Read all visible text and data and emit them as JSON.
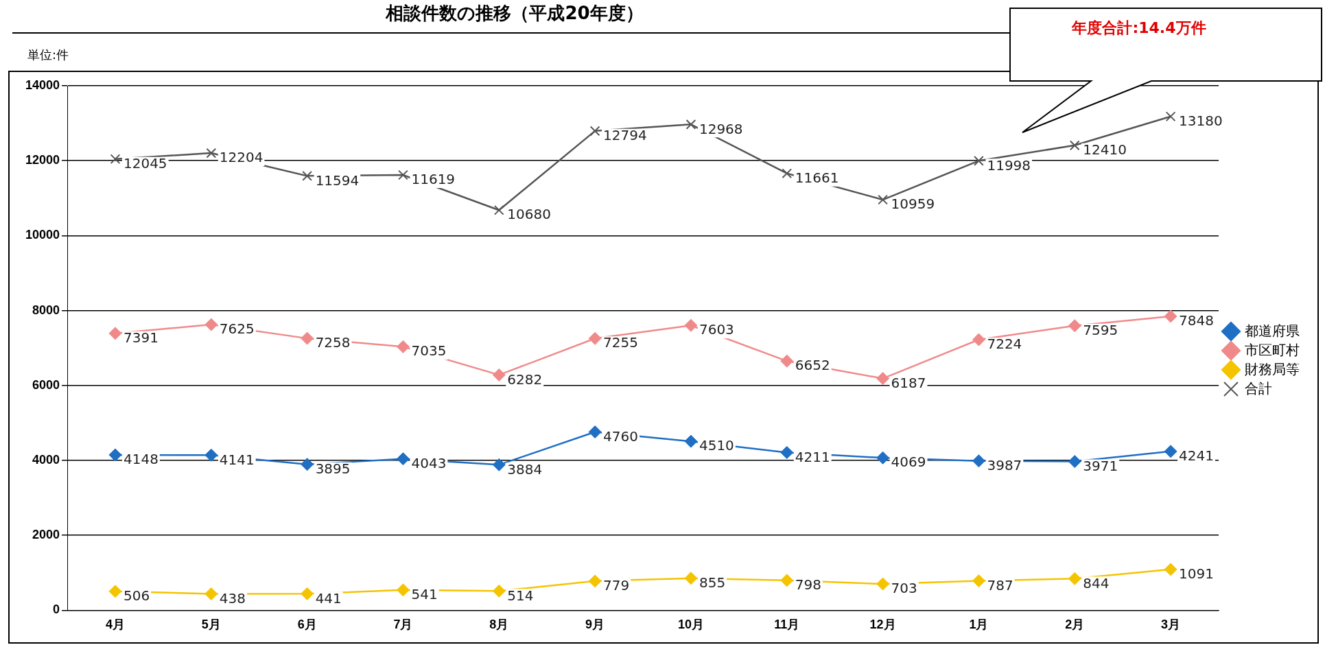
{
  "chart_data": {
    "type": "line",
    "title": "相談件数の推移（平成20年度）",
    "ylabel": "単位:件",
    "annotations": [
      "年度合計:14.4万件"
    ],
    "categories": [
      "4月",
      "5月",
      "6月",
      "7月",
      "8月",
      "9月",
      "10月",
      "11月",
      "12月",
      "1月",
      "2月",
      "3月"
    ],
    "series": [
      {
        "name": "都道府県",
        "color": "#1f6fc5",
        "marker": "diamond",
        "values": [
          4148,
          4141,
          3895,
          4043,
          3884,
          4760,
          4510,
          4211,
          4069,
          3987,
          3971,
          4241
        ]
      },
      {
        "name": "市区町村",
        "color": "#f08a8a",
        "marker": "diamond",
        "values": [
          7391,
          7625,
          7258,
          7035,
          6282,
          7255,
          7603,
          6652,
          6187,
          7224,
          7595,
          7848
        ]
      },
      {
        "name": "財務局等",
        "color": "#f5c400",
        "marker": "diamond",
        "values": [
          506,
          438,
          441,
          541,
          514,
          779,
          855,
          798,
          703,
          787,
          844,
          1091
        ]
      },
      {
        "name": "合計",
        "color": "#555555",
        "marker": "cross",
        "values": [
          12045,
          12204,
          11594,
          11619,
          10680,
          12794,
          12968,
          11661,
          10959,
          11998,
          12410,
          13180
        ]
      }
    ],
    "ylim": [
      0,
      14000
    ],
    "yticks": [
      0,
      2000,
      4000,
      6000,
      8000,
      10000,
      12000,
      14000
    ],
    "grid": "y",
    "legend": "right",
    "data_labels": true
  }
}
